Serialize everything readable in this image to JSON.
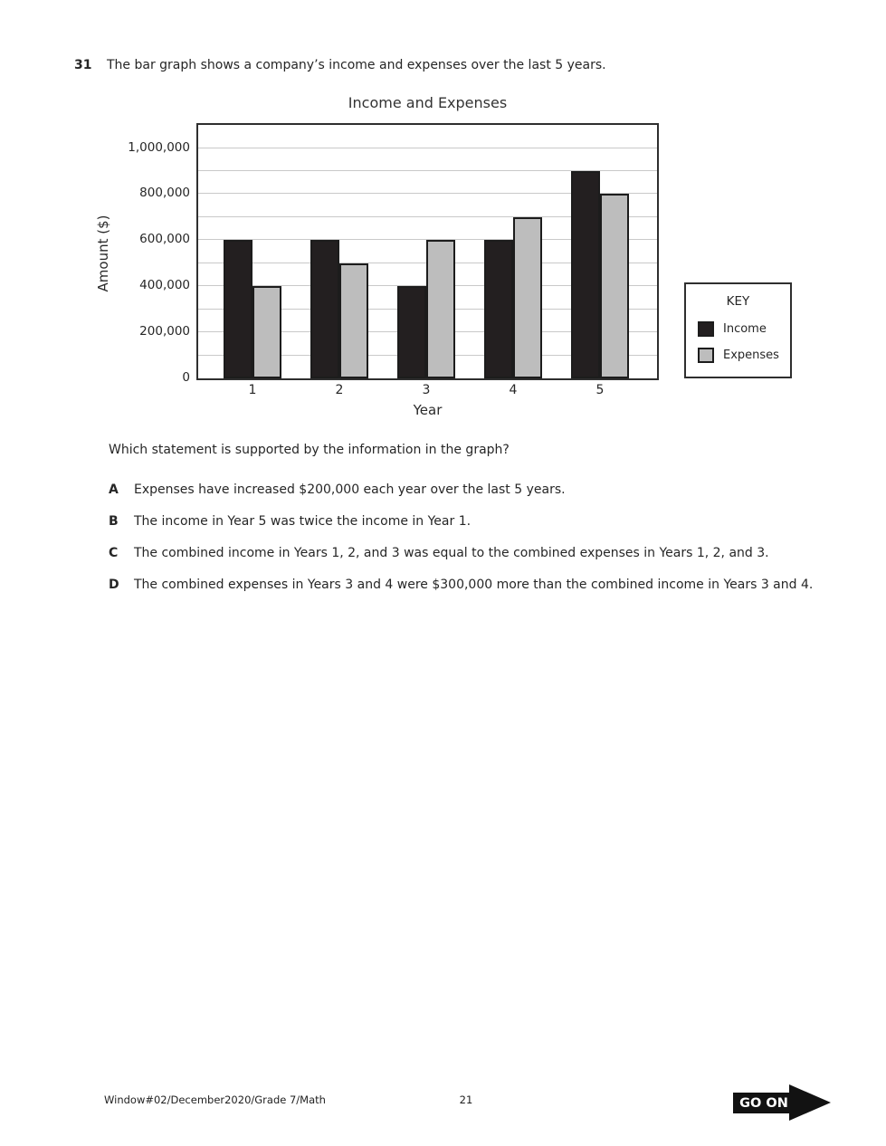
{
  "question": {
    "number": "31",
    "intro": "The bar graph shows a company’s income and expenses over the last 5 years.",
    "prompt": "Which statement is supported by the information in the graph?",
    "options": [
      {
        "letter": "A",
        "text": "Expenses have increased $200,000 each year over the last 5 years."
      },
      {
        "letter": "B",
        "text": "The income in Year 5 was twice the income in Year 1."
      },
      {
        "letter": "C",
        "text": "The combined income in Years 1, 2, and 3 was equal to the combined expenses in Years 1, 2, and 3."
      },
      {
        "letter": "D",
        "text": "The combined expenses in Years 3 and 4 were $300,000 more than the combined income in Years 3 and 4."
      }
    ]
  },
  "chart_data": {
    "type": "bar",
    "title": "Income and Expenses",
    "xlabel": "Year",
    "ylabel": "Amount ($)",
    "categories": [
      "1",
      "2",
      "3",
      "4",
      "5"
    ],
    "series": [
      {
        "name": "Income",
        "color": "#231f20",
        "values": [
          600000,
          600000,
          400000,
          600000,
          900000
        ]
      },
      {
        "name": "Expenses",
        "color": "#bdbdbd",
        "values": [
          400000,
          500000,
          600000,
          700000,
          800000
        ]
      }
    ],
    "ylim": [
      0,
      1100000
    ],
    "gridline_step": 100000,
    "grid": true,
    "yticks": [
      {
        "value": 0,
        "label": "0"
      },
      {
        "value": 200000,
        "label": "200,000"
      },
      {
        "value": 400000,
        "label": "400,000"
      },
      {
        "value": 600000,
        "label": "600,000"
      },
      {
        "value": 800000,
        "label": "800,000"
      },
      {
        "value": 1000000,
        "label": "1,000,000"
      }
    ],
    "legend": {
      "title": "KEY",
      "position": "right",
      "entries": [
        "Income",
        "Expenses"
      ]
    }
  },
  "footer": {
    "left": "Window#02/December2020/Grade 7/Math",
    "page": "21",
    "go_on": "GO ON"
  }
}
